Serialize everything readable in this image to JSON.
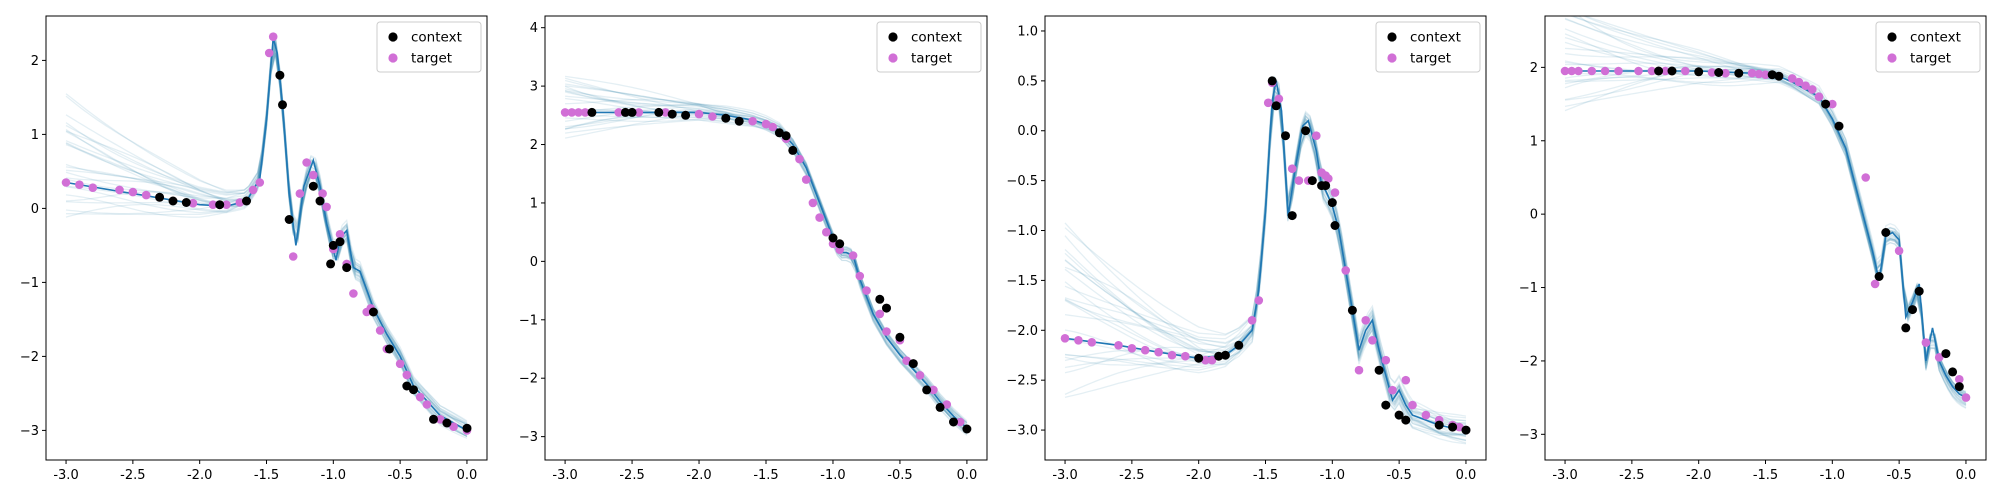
{
  "legend": {
    "context_label": "context",
    "target_label": "target"
  },
  "colors": {
    "mean_line": "#1f77b4",
    "samples": "#2e86ab",
    "context": "#000000",
    "target": "#d16fd6",
    "axes": "#000000"
  },
  "chart_data": [
    {
      "type": "line",
      "title": "",
      "xlabel": "",
      "ylabel": "",
      "xlim": [
        -3.15,
        0.15
      ],
      "ylim": [
        -3.4,
        2.6
      ],
      "x_ticks": [
        -3.0,
        -2.5,
        -2.0,
        -1.5,
        -1.0,
        -0.5,
        0.0
      ],
      "x_tick_labels": [
        "-3.0",
        "-2.5",
        "-2.0",
        "-1.5",
        "-1.0",
        "-0.5",
        "0.0"
      ],
      "y_ticks": [
        -3,
        -2,
        -1,
        0,
        1,
        2
      ],
      "y_tick_labels": [
        "−3",
        "−2",
        "−1",
        "0",
        "1",
        "2"
      ],
      "legend_position": "top-right",
      "series": [
        {
          "name": "",
          "x": [
            -3.0,
            -2.5,
            -2.0,
            -1.8,
            -1.65,
            -1.55,
            -1.5,
            -1.45,
            -1.42,
            -1.38,
            -1.33,
            -1.28,
            -1.22,
            -1.15,
            -1.1,
            -1.05,
            -0.98,
            -0.95,
            -0.9,
            -0.85,
            -0.8,
            -0.7,
            -0.6,
            -0.5,
            -0.4,
            -0.3,
            -0.2,
            -0.1,
            0.0
          ],
          "y": [
            0.35,
            0.2,
            0.05,
            0.03,
            0.1,
            0.4,
            1.2,
            2.3,
            2.1,
            1.4,
            0.2,
            -0.5,
            0.3,
            0.65,
            0.3,
            -0.2,
            -0.7,
            -0.4,
            -0.3,
            -0.8,
            -0.85,
            -1.35,
            -1.7,
            -2.0,
            -2.4,
            -2.6,
            -2.8,
            -2.9,
            -3.0
          ]
        }
      ],
      "context_points": {
        "x": [
          -2.3,
          -2.2,
          -2.1,
          -1.85,
          -1.65,
          -1.4,
          -1.38,
          -1.33,
          -1.15,
          -1.1,
          -1.02,
          -1.0,
          -0.95,
          -0.9,
          -0.7,
          -0.58,
          -0.45,
          -0.4,
          -0.25,
          -0.15,
          0.0
        ],
        "y": [
          0.15,
          0.1,
          0.08,
          0.05,
          0.1,
          1.8,
          1.4,
          -0.15,
          0.3,
          0.1,
          -0.75,
          -0.5,
          -0.45,
          -0.8,
          -1.4,
          -1.9,
          -2.4,
          -2.45,
          -2.85,
          -2.9,
          -2.97
        ]
      },
      "target_points": {
        "x": [
          -3.0,
          -2.9,
          -2.8,
          -2.6,
          -2.5,
          -2.4,
          -2.3,
          -2.05,
          -1.9,
          -1.8,
          -1.7,
          -1.6,
          -1.55,
          -1.48,
          -1.45,
          -1.3,
          -1.25,
          -1.2,
          -1.15,
          -1.08,
          -1.05,
          -1.0,
          -0.95,
          -0.9,
          -0.85,
          -0.75,
          -0.72,
          -0.65,
          -0.6,
          -0.5,
          -0.45,
          -0.35,
          -0.3,
          -0.2,
          -0.1,
          0.0
        ],
        "y": [
          0.35,
          0.32,
          0.28,
          0.25,
          0.22,
          0.18,
          0.15,
          0.07,
          0.05,
          0.05,
          0.08,
          0.25,
          0.35,
          2.1,
          2.32,
          -0.65,
          0.2,
          0.62,
          0.45,
          0.2,
          0.02,
          -0.55,
          -0.35,
          -0.75,
          -1.15,
          -1.4,
          -1.35,
          -1.65,
          -1.9,
          -2.1,
          -2.25,
          -2.55,
          -2.65,
          -2.85,
          -2.95,
          -3.0
        ]
      }
    },
    {
      "type": "line",
      "title": "",
      "xlabel": "",
      "ylabel": "",
      "xlim": [
        -3.15,
        0.15
      ],
      "ylim": [
        -3.4,
        4.2
      ],
      "x_ticks": [
        -3.0,
        -2.5,
        -2.0,
        -1.5,
        -1.0,
        -0.5,
        0.0
      ],
      "x_tick_labels": [
        "-3.0",
        "-2.5",
        "-2.0",
        "-1.5",
        "-1.0",
        "-0.5",
        "0.0"
      ],
      "y_ticks": [
        -3,
        -2,
        -1,
        0,
        1,
        2,
        3,
        4
      ],
      "y_tick_labels": [
        "−3",
        "−2",
        "−1",
        "0",
        "1",
        "2",
        "3",
        "4"
      ],
      "legend_position": "top-right",
      "series": [
        {
          "name": "",
          "x": [
            -3.0,
            -2.5,
            -2.0,
            -1.8,
            -1.6,
            -1.5,
            -1.4,
            -1.3,
            -1.2,
            -1.1,
            -1.0,
            -0.95,
            -0.9,
            -0.85,
            -0.8,
            -0.7,
            -0.6,
            -0.5,
            -0.4,
            -0.3,
            -0.2,
            -0.1,
            0.0
          ],
          "y": [
            2.55,
            2.55,
            2.55,
            2.5,
            2.42,
            2.35,
            2.25,
            2.0,
            1.6,
            1.0,
            0.4,
            0.15,
            0.15,
            0.1,
            -0.3,
            -0.9,
            -1.3,
            -1.6,
            -1.85,
            -2.1,
            -2.4,
            -2.65,
            -2.85
          ]
        }
      ],
      "context_points": {
        "x": [
          -2.8,
          -2.55,
          -2.5,
          -2.3,
          -2.2,
          -2.1,
          -1.8,
          -1.7,
          -1.4,
          -1.35,
          -1.3,
          -1.0,
          -0.95,
          -0.65,
          -0.6,
          -0.5,
          -0.4,
          -0.3,
          -0.2,
          -0.1,
          0.0
        ],
        "y": [
          2.55,
          2.55,
          2.55,
          2.55,
          2.52,
          2.5,
          2.45,
          2.4,
          2.2,
          2.15,
          1.9,
          0.4,
          0.3,
          -0.65,
          -0.8,
          -1.3,
          -1.75,
          -2.2,
          -2.5,
          -2.75,
          -2.87
        ]
      },
      "target_points": {
        "x": [
          -3.0,
          -2.95,
          -2.9,
          -2.85,
          -2.6,
          -2.45,
          -2.25,
          -2.0,
          -1.9,
          -1.6,
          -1.5,
          -1.45,
          -1.35,
          -1.25,
          -1.2,
          -1.15,
          -1.1,
          -1.05,
          -1.0,
          -0.95,
          -0.85,
          -0.8,
          -0.75,
          -0.65,
          -0.6,
          -0.5,
          -0.45,
          -0.35,
          -0.25,
          -0.15,
          -0.05
        ],
        "y": [
          2.55,
          2.55,
          2.55,
          2.55,
          2.55,
          2.55,
          2.55,
          2.52,
          2.48,
          2.4,
          2.35,
          2.3,
          2.1,
          1.75,
          1.4,
          1.0,
          0.75,
          0.5,
          0.3,
          0.2,
          0.1,
          -0.25,
          -0.5,
          -0.9,
          -1.2,
          -1.35,
          -1.7,
          -1.95,
          -2.2,
          -2.45,
          -2.75
        ]
      }
    },
    {
      "type": "line",
      "title": "",
      "xlabel": "",
      "ylabel": "",
      "xlim": [
        -3.15,
        0.15
      ],
      "ylim": [
        -3.3,
        1.15
      ],
      "x_ticks": [
        -3.0,
        -2.5,
        -2.0,
        -1.5,
        -1.0,
        -0.5,
        0.0
      ],
      "x_tick_labels": [
        "-3.0",
        "-2.5",
        "-2.0",
        "-1.5",
        "-1.0",
        "-0.5",
        "0.0"
      ],
      "y_ticks": [
        -3.0,
        -2.5,
        -2.0,
        -1.5,
        -1.0,
        -0.5,
        0.0,
        0.5,
        1.0
      ],
      "y_tick_labels": [
        "−3.0",
        "−2.5",
        "−2.0",
        "−1.5",
        "−1.0",
        "−0.5",
        "0.0",
        "0.5",
        "1.0"
      ],
      "legend_position": "top-right",
      "series": [
        {
          "name": "",
          "x": [
            -3.0,
            -2.6,
            -2.3,
            -2.0,
            -1.8,
            -1.7,
            -1.6,
            -1.55,
            -1.5,
            -1.45,
            -1.42,
            -1.38,
            -1.33,
            -1.28,
            -1.22,
            -1.18,
            -1.12,
            -1.08,
            -1.05,
            -1.0,
            -0.95,
            -0.9,
            -0.85,
            -0.8,
            -0.75,
            -0.7,
            -0.65,
            -0.6,
            -0.55,
            -0.5,
            -0.45,
            -0.4,
            -0.3,
            -0.2,
            -0.1,
            0.0
          ],
          "y": [
            -2.08,
            -2.15,
            -2.22,
            -2.28,
            -2.25,
            -2.15,
            -2.0,
            -1.6,
            -0.8,
            0.3,
            0.5,
            0.2,
            -0.85,
            -0.4,
            0.05,
            0.1,
            -0.2,
            -0.55,
            -0.6,
            -0.75,
            -1.0,
            -1.4,
            -1.8,
            -2.2,
            -2.0,
            -1.9,
            -2.2,
            -2.45,
            -2.7,
            -2.6,
            -2.75,
            -2.85,
            -2.9,
            -2.95,
            -2.98,
            -3.0
          ]
        }
      ],
      "context_points": {
        "x": [
          -2.0,
          -1.85,
          -1.8,
          -1.7,
          -1.45,
          -1.42,
          -1.35,
          -1.3,
          -1.2,
          -1.15,
          -1.08,
          -1.05,
          -1.0,
          -0.98,
          -0.85,
          -0.65,
          -0.6,
          -0.5,
          -0.45,
          -0.2,
          -0.1,
          0.0
        ],
        "y": [
          -2.28,
          -2.26,
          -2.25,
          -2.15,
          0.5,
          0.25,
          -0.05,
          -0.85,
          0.0,
          -0.5,
          -0.55,
          -0.55,
          -0.72,
          -0.95,
          -1.8,
          -2.4,
          -2.75,
          -2.85,
          -2.9,
          -2.95,
          -2.97,
          -3.0
        ]
      },
      "target_points": {
        "x": [
          -3.0,
          -2.9,
          -2.8,
          -2.6,
          -2.5,
          -2.4,
          -2.3,
          -2.2,
          -2.1,
          -1.95,
          -1.9,
          -1.6,
          -1.55,
          -1.48,
          -1.45,
          -1.4,
          -1.3,
          -1.25,
          -1.18,
          -1.12,
          -1.08,
          -1.05,
          -1.03,
          -0.98,
          -0.9,
          -0.8,
          -0.75,
          -0.7,
          -0.6,
          -0.55,
          -0.45,
          -0.4,
          -0.3,
          -0.2,
          -0.1,
          -0.05,
          0.0
        ],
        "y": [
          -2.08,
          -2.1,
          -2.12,
          -2.15,
          -2.18,
          -2.2,
          -2.22,
          -2.25,
          -2.26,
          -2.3,
          -2.3,
          -1.9,
          -1.7,
          0.28,
          0.48,
          0.32,
          -0.38,
          -0.5,
          -0.5,
          -0.05,
          -0.42,
          -0.45,
          -0.48,
          -0.62,
          -1.4,
          -2.4,
          -1.9,
          -2.1,
          -2.3,
          -2.6,
          -2.5,
          -2.75,
          -2.85,
          -2.9,
          -2.95,
          -2.97,
          -3.0
        ]
      }
    },
    {
      "type": "line",
      "title": "",
      "xlabel": "",
      "ylabel": "",
      "xlim": [
        -3.15,
        0.15
      ],
      "ylim": [
        -3.35,
        2.7
      ],
      "x_ticks": [
        -3.0,
        -2.5,
        -2.0,
        -1.5,
        -1.0,
        -0.5,
        0.0
      ],
      "x_tick_labels": [
        "-3.0",
        "-2.5",
        "-2.0",
        "-1.5",
        "-1.0",
        "-0.5",
        "0.0"
      ],
      "y_ticks": [
        -3,
        -2,
        -1,
        0,
        1,
        2
      ],
      "y_tick_labels": [
        "−3",
        "−2",
        "−1",
        "0",
        "1",
        "2"
      ],
      "legend_position": "top-right",
      "series": [
        {
          "name": "",
          "x": [
            -3.0,
            -2.5,
            -2.0,
            -1.6,
            -1.4,
            -1.3,
            -1.2,
            -1.1,
            -1.0,
            -0.9,
            -0.8,
            -0.7,
            -0.65,
            -0.6,
            -0.55,
            -0.5,
            -0.45,
            -0.4,
            -0.35,
            -0.3,
            -0.25,
            -0.2,
            -0.15,
            -0.1,
            -0.05,
            0.0
          ],
          "y": [
            1.95,
            1.95,
            1.95,
            1.92,
            1.88,
            1.8,
            1.7,
            1.6,
            1.3,
            0.9,
            0.2,
            -0.5,
            -0.9,
            -0.3,
            -0.25,
            -0.35,
            -1.4,
            -1.2,
            -0.95,
            -2.0,
            -1.55,
            -2.0,
            -2.2,
            -2.35,
            -2.45,
            -2.5
          ]
        }
      ],
      "context_points": {
        "x": [
          -2.3,
          -2.2,
          -2.0,
          -1.85,
          -1.7,
          -1.45,
          -1.4,
          -1.05,
          -0.95,
          -0.65,
          -0.6,
          -0.45,
          -0.4,
          -0.35,
          -0.15,
          -0.1,
          -0.05
        ],
        "y": [
          1.95,
          1.95,
          1.94,
          1.93,
          1.92,
          1.9,
          1.88,
          1.5,
          1.2,
          -0.85,
          -0.25,
          -1.55,
          -1.3,
          -1.05,
          -1.9,
          -2.15,
          -2.35
        ]
      },
      "target_points": {
        "x": [
          -3.0,
          -2.95,
          -2.9,
          -2.8,
          -2.7,
          -2.6,
          -2.45,
          -2.35,
          -2.25,
          -2.1,
          -1.9,
          -1.8,
          -1.6,
          -1.55,
          -1.5,
          -1.4,
          -1.3,
          -1.25,
          -1.2,
          -1.15,
          -1.1,
          -1.0,
          -0.75,
          -0.68,
          -0.5,
          -0.3,
          -0.2,
          -0.05,
          0.0
        ],
        "y": [
          1.95,
          1.95,
          1.95,
          1.95,
          1.95,
          1.95,
          1.95,
          1.95,
          1.95,
          1.95,
          1.93,
          1.92,
          1.92,
          1.91,
          1.9,
          1.88,
          1.85,
          1.8,
          1.75,
          1.7,
          1.6,
          1.5,
          0.5,
          -0.95,
          -0.5,
          -1.75,
          -1.95,
          -2.25,
          -2.5
        ]
      }
    }
  ]
}
